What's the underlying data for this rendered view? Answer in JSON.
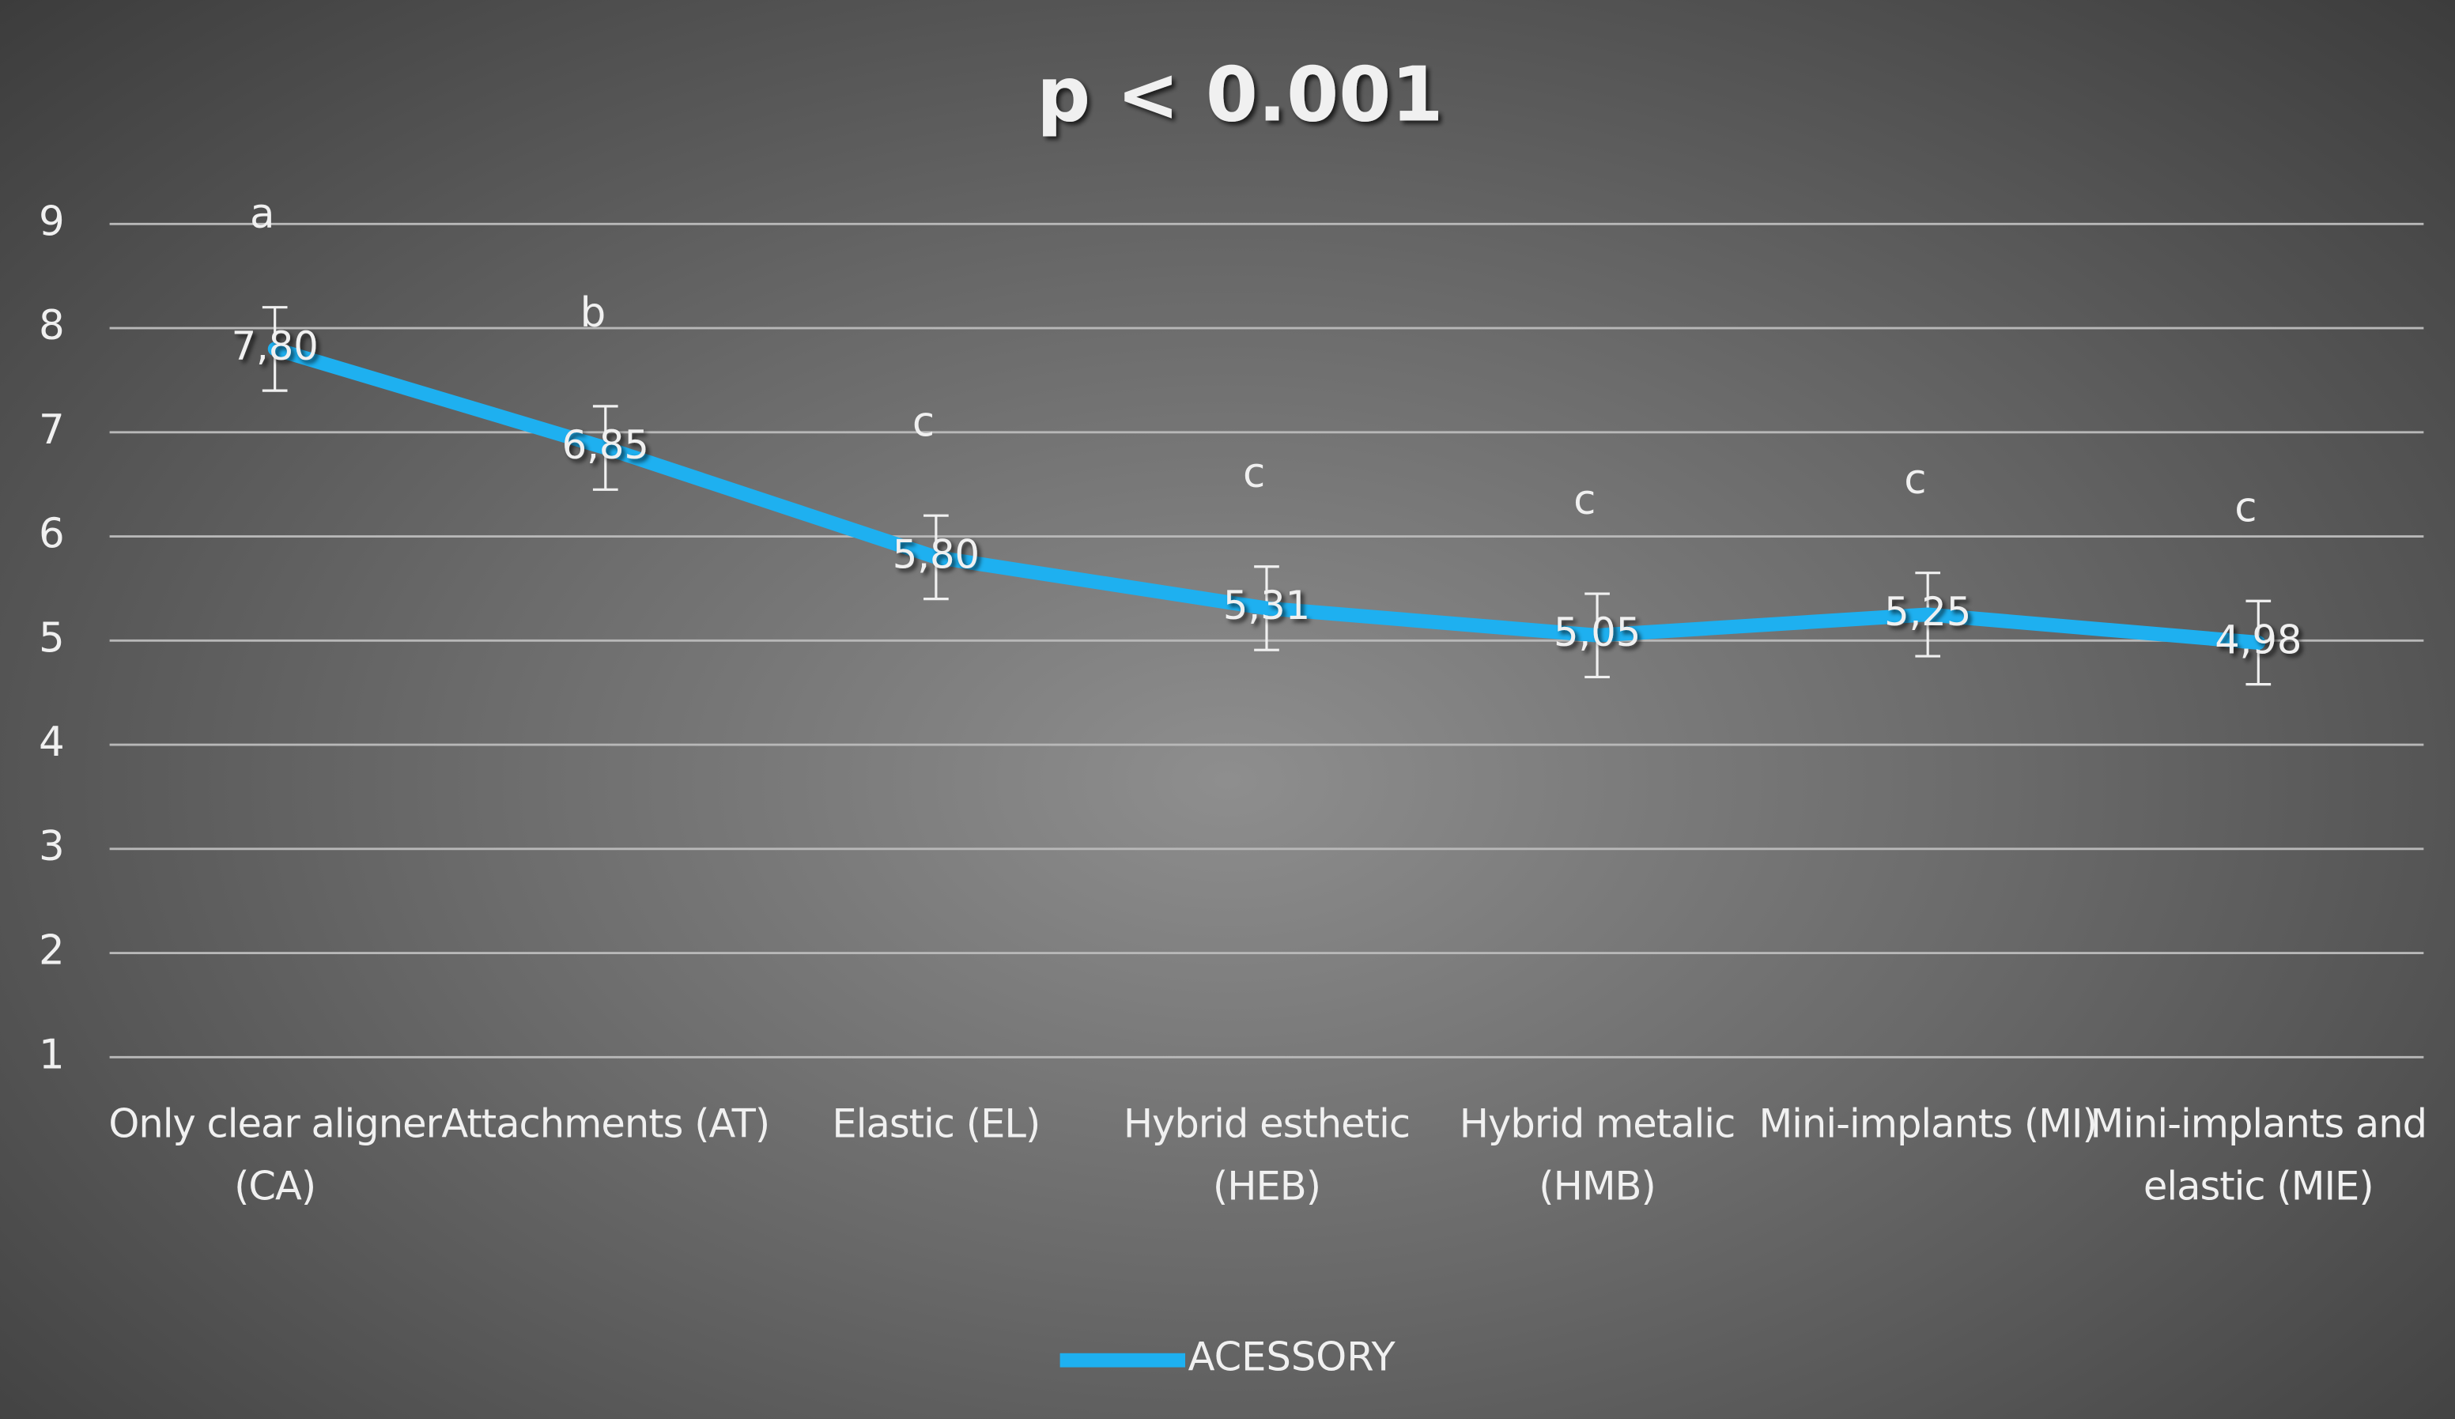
{
  "chart_data": {
    "type": "line",
    "title": "p < 0.001",
    "categories": [
      "Only clear aligner (CA)",
      "Attachments (AT)",
      "Elastic (EL)",
      "Hybrid esthetic (HEB)",
      "Hybrid metalic (HMB)",
      "Mini-implants (MI)",
      "Mini-implants and elastic (MIE)"
    ],
    "series": [
      {
        "name": "ACESSORY",
        "color": "#1eb0f0",
        "values": [
          7.8,
          6.85,
          5.8,
          5.31,
          5.05,
          5.25,
          4.98
        ],
        "value_labels": [
          "7,80",
          "6,85",
          "5,80",
          "5,31",
          "5,05",
          "5,25",
          "4,98"
        ],
        "errors": [
          0.4,
          0.4,
          0.4,
          0.4,
          0.4,
          0.4,
          0.4
        ]
      }
    ],
    "annotations": [
      "a",
      "b",
      "c",
      "c",
      "c",
      "c",
      "c"
    ],
    "ylim": [
      1,
      9
    ],
    "yticks": [
      1,
      2,
      3,
      4,
      5,
      6,
      7,
      8,
      9
    ],
    "grid": true,
    "legend": "bottom"
  }
}
